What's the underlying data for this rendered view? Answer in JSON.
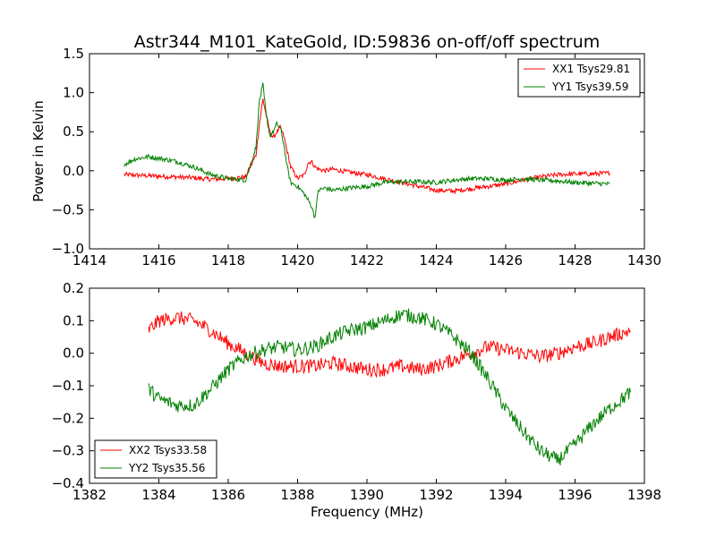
{
  "title": "Astr344_M101_KateGold, ID:59836 on-off/off spectrum",
  "chart_data": [
    {
      "type": "line",
      "title": "Astr344_M101_KateGold, ID:59836 on-off/off spectrum",
      "xlabel": "",
      "ylabel": "Power in Kelvin",
      "xlim": [
        1414,
        1430
      ],
      "ylim": [
        -1.0,
        1.5
      ],
      "xticks": [
        1414,
        1416,
        1418,
        1420,
        1422,
        1424,
        1426,
        1428,
        1430
      ],
      "xtick_labels": [
        "1414",
        "1416",
        "1418",
        "1420",
        "1422",
        "1424",
        "1426",
        "1428",
        "1430"
      ],
      "yticks": [
        -1.0,
        -0.5,
        0.0,
        0.5,
        1.0,
        1.5
      ],
      "ytick_labels": [
        "−1.0",
        "−0.5",
        "0.0",
        "0.5",
        "1.0",
        "1.5"
      ],
      "grid": false,
      "legend": "top-right",
      "series": [
        {
          "name": "XX1 Tsys29.81",
          "color": "#ff0000",
          "x": [
            1415.0,
            1415.5,
            1416.0,
            1416.5,
            1417.0,
            1417.5,
            1418.0,
            1418.5,
            1418.8,
            1418.9,
            1419.0,
            1419.1,
            1419.2,
            1419.3,
            1419.4,
            1419.5,
            1419.6,
            1419.7,
            1419.8,
            1420.0,
            1420.2,
            1420.3,
            1420.4,
            1420.5,
            1420.6,
            1420.8,
            1421.0,
            1421.5,
            1422.0,
            1422.5,
            1423.0,
            1423.5,
            1424.0,
            1424.5,
            1425.0,
            1425.5,
            1426.0,
            1426.5,
            1427.0,
            1427.5,
            1428.0,
            1428.5,
            1429.0
          ],
          "y": [
            -0.05,
            -0.06,
            -0.07,
            -0.08,
            -0.09,
            -0.11,
            -0.1,
            -0.08,
            0.2,
            0.6,
            0.92,
            0.7,
            0.5,
            0.42,
            0.5,
            0.55,
            0.45,
            0.25,
            0.05,
            -0.1,
            -0.05,
            0.1,
            0.12,
            0.05,
            0.02,
            0.0,
            0.02,
            -0.02,
            -0.05,
            -0.1,
            -0.15,
            -0.2,
            -0.25,
            -0.26,
            -0.23,
            -0.2,
            -0.17,
            -0.12,
            -0.08,
            -0.05,
            -0.04,
            -0.04,
            -0.03
          ]
        },
        {
          "name": "YY1 Tsys39.59",
          "color": "#008000",
          "x": [
            1415.0,
            1415.3,
            1415.7,
            1416.0,
            1416.5,
            1417.0,
            1417.5,
            1418.0,
            1418.5,
            1418.8,
            1418.9,
            1419.0,
            1419.1,
            1419.2,
            1419.3,
            1419.4,
            1419.5,
            1419.6,
            1419.7,
            1419.8,
            1420.0,
            1420.2,
            1420.4,
            1420.5,
            1420.6,
            1420.8,
            1421.0,
            1421.5,
            1422.0,
            1422.5,
            1423.0,
            1423.5,
            1424.0,
            1424.5,
            1425.0,
            1425.5,
            1426.0,
            1426.5,
            1427.0,
            1427.5,
            1428.0,
            1428.5,
            1429.0
          ],
          "y": [
            0.08,
            0.15,
            0.18,
            0.16,
            0.12,
            0.05,
            -0.05,
            -0.1,
            -0.12,
            0.3,
            0.9,
            1.1,
            0.7,
            0.45,
            0.5,
            0.6,
            0.55,
            0.35,
            0.05,
            -0.15,
            -0.2,
            -0.3,
            -0.45,
            -0.6,
            -0.25,
            -0.22,
            -0.25,
            -0.22,
            -0.2,
            -0.15,
            -0.14,
            -0.14,
            -0.15,
            -0.12,
            -0.1,
            -0.1,
            -0.12,
            -0.1,
            -0.12,
            -0.13,
            -0.15,
            -0.16,
            -0.17
          ]
        }
      ]
    },
    {
      "type": "line",
      "title": "",
      "xlabel": "Frequency (MHz)",
      "ylabel": "",
      "xlim": [
        1382,
        1398
      ],
      "ylim": [
        -0.4,
        0.2
      ],
      "xticks": [
        1382,
        1384,
        1386,
        1388,
        1390,
        1392,
        1394,
        1396,
        1398
      ],
      "xtick_labels": [
        "1382",
        "1384",
        "1386",
        "1388",
        "1390",
        "1392",
        "1394",
        "1396",
        "1398"
      ],
      "yticks": [
        -0.4,
        -0.3,
        -0.2,
        -0.1,
        0.0,
        0.1,
        0.2
      ],
      "ytick_labels": [
        "−0.4",
        "−0.3",
        "−0.2",
        "−0.1",
        "0.0",
        "0.1",
        "0.2"
      ],
      "grid": false,
      "legend": "bottom-left",
      "series": [
        {
          "name": "XX2 Tsys33.58",
          "color": "#ff0000",
          "x": [
            1383.7,
            1384.0,
            1384.5,
            1385.0,
            1385.5,
            1386.0,
            1386.5,
            1387.0,
            1387.5,
            1388.0,
            1388.5,
            1389.0,
            1389.5,
            1390.0,
            1390.5,
            1391.0,
            1391.5,
            1392.0,
            1392.5,
            1393.0,
            1393.5,
            1394.0,
            1394.5,
            1395.0,
            1395.5,
            1396.0,
            1396.5,
            1397.0,
            1397.6
          ],
          "y": [
            0.07,
            0.1,
            0.11,
            0.1,
            0.07,
            0.03,
            0.0,
            -0.03,
            -0.04,
            -0.04,
            -0.04,
            -0.03,
            -0.04,
            -0.05,
            -0.05,
            -0.04,
            -0.05,
            -0.04,
            -0.02,
            0.0,
            0.02,
            0.01,
            0.0,
            -0.01,
            0.0,
            0.02,
            0.03,
            0.05,
            0.07
          ]
        },
        {
          "name": "YY2 Tsys35.56",
          "color": "#008000",
          "x": [
            1383.7,
            1384.0,
            1384.5,
            1385.0,
            1385.5,
            1386.0,
            1386.5,
            1387.0,
            1387.5,
            1388.0,
            1388.5,
            1389.0,
            1389.5,
            1390.0,
            1390.5,
            1391.0,
            1391.5,
            1392.0,
            1392.5,
            1393.0,
            1393.5,
            1394.0,
            1394.5,
            1395.0,
            1395.5,
            1396.0,
            1396.5,
            1397.0,
            1397.6
          ],
          "y": [
            -0.11,
            -0.14,
            -0.16,
            -0.16,
            -0.11,
            -0.05,
            -0.01,
            0.01,
            0.02,
            0.01,
            0.02,
            0.05,
            0.07,
            0.08,
            0.1,
            0.12,
            0.11,
            0.09,
            0.05,
            0.0,
            -0.08,
            -0.17,
            -0.24,
            -0.3,
            -0.33,
            -0.28,
            -0.22,
            -0.17,
            -0.12
          ]
        }
      ]
    }
  ]
}
